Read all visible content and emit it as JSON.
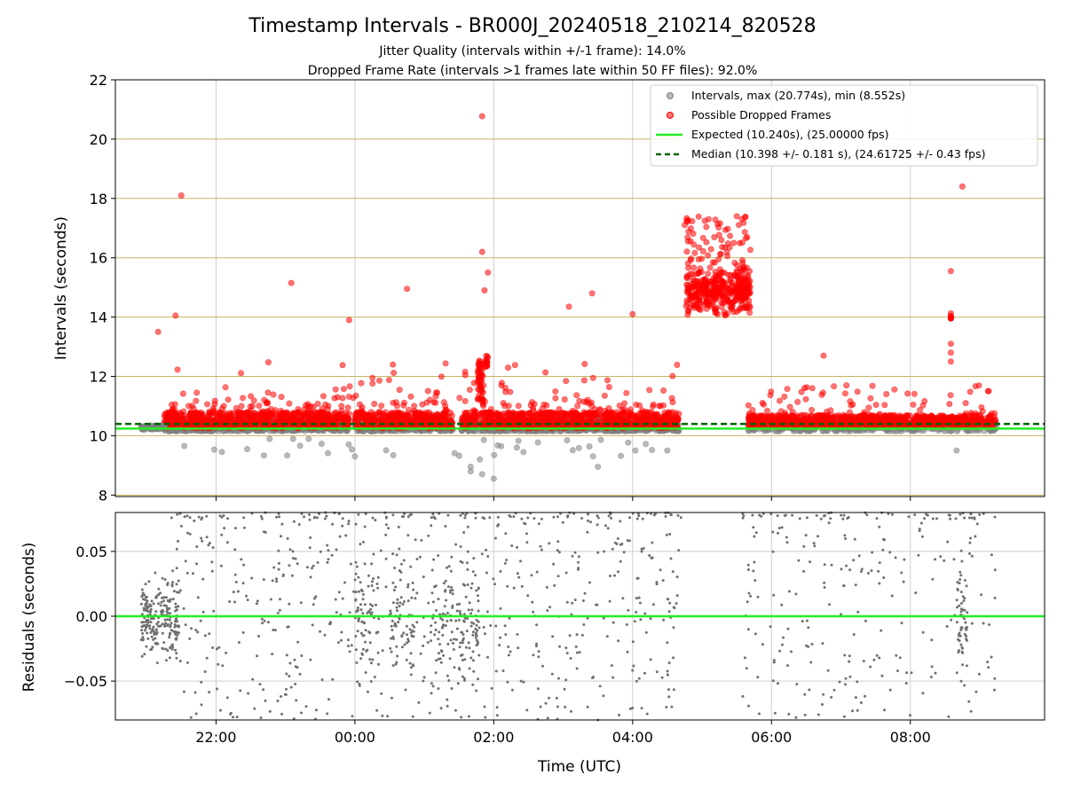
{
  "chart_data": [
    {
      "type": "scatter",
      "title": "Timestamp Intervals - BR000J_20240518_210214_820528",
      "subtitle_1": "Jitter Quality (intervals within +/-1 frame): 14.0%",
      "subtitle_2": "Dropped Frame Rate (intervals >1 frames late within 50 FF files): 92.0%",
      "ylabel": "Intervals (seconds)",
      "ylim": [
        7.95,
        22
      ],
      "yticks": [
        "8",
        "10",
        "12",
        "14",
        "16",
        "18",
        "20",
        "22"
      ],
      "xlim_hours_utc": [
        "2024-05-18T20:33",
        "2024-05-19T09:56"
      ],
      "grid": true,
      "legend_position": "upper right",
      "legend": [
        "Intervals, max (20.774s), min (8.552s)",
        "Possible Dropped Frames",
        "Expected (10.240s), (25.00000 fps)",
        "Median (10.398 +/- 0.181 s), (24.61725 +/- 0.43 fps)"
      ],
      "reference_lines": {
        "expected": 10.24,
        "median": 10.398
      },
      "series": [
        {
          "name": "Intervals, max (20.774s), min (8.552s)",
          "color": "#808080",
          "notable_points": [
            {
              "x": "01:40",
              "y": 8.8
            },
            {
              "x": "01:40",
              "y": 8.95
            },
            {
              "x": "01:48",
              "y": 9.2
            },
            {
              "x": "01:50",
              "y": 8.7
            },
            {
              "x": "02:00",
              "y": 8.55
            },
            {
              "x": "00:00",
              "y": 9.3
            },
            {
              "x": "03:30",
              "y": 8.95
            },
            {
              "x": "08:40",
              "y": 9.5
            },
            {
              "x": "02:20",
              "y": 9.6
            },
            {
              "x": "22:05",
              "y": 9.45
            },
            {
              "x": "04:30",
              "y": 9.5
            }
          ]
        },
        {
          "name": "Possible Dropped Frames",
          "color": "#ff0000",
          "notable_points": [
            {
              "x": "01:50",
              "y": 20.77
            },
            {
              "x": "21:30",
              "y": 18.1
            },
            {
              "x": "08:45",
              "y": 18.4
            },
            {
              "x": "23:05",
              "y": 15.15
            },
            {
              "x": "21:25",
              "y": 14.05
            },
            {
              "x": "00:45",
              "y": 14.95
            },
            {
              "x": "03:25",
              "y": 14.8
            },
            {
              "x": "03:05",
              "y": 14.35
            },
            {
              "x": "23:55",
              "y": 13.9
            },
            {
              "x": "04:00",
              "y": 14.1
            },
            {
              "x": "08:35",
              "y": 15.55
            },
            {
              "x": "21:10",
              "y": 13.5
            },
            {
              "x": "01:50",
              "y": 16.2
            },
            {
              "x": "01:55",
              "y": 15.5
            },
            {
              "x": "01:52",
              "y": 14.9
            },
            {
              "x": "05:30",
              "y": 17.4
            },
            {
              "x": "04:45",
              "y": 17.1
            },
            {
              "x": "06:45",
              "y": 12.7
            }
          ],
          "clusters": [
            {
              "x_range": [
                "04:40",
                "05:45"
              ],
              "y_range": [
                13.5,
                17.4
              ]
            },
            {
              "x_range": [
                "21:15",
                "04:40"
              ],
              "y_range": [
                10.2,
                11.0
              ]
            },
            {
              "x_range": [
                "05:40",
                "09:15"
              ],
              "y_range": [
                10.2,
                10.9
              ]
            }
          ]
        }
      ]
    },
    {
      "type": "scatter",
      "ylabel": "Residuals (seconds)",
      "xlabel": "Time (UTC)",
      "ylim": [
        -0.08,
        0.08
      ],
      "yticks": [
        "0.05",
        "0.00",
        "−0.05"
      ],
      "xticks": [
        "22:00",
        "00:00",
        "02:00",
        "04:00",
        "06:00",
        "08:00"
      ],
      "grid": true,
      "zero_line_color": "#22ee22",
      "series": [
        {
          "name": "",
          "color": "#707070",
          "x_range": [
            "20:55",
            "09:15"
          ],
          "y_range": [
            -0.08,
            0.08
          ]
        }
      ]
    }
  ],
  "colors": {
    "interval_gray": "#808080",
    "dropped_red": "#ff0000",
    "expected_green": "#22ee22",
    "median_darkgreen": "#006400",
    "hgrid_gold": "#c8b560"
  }
}
